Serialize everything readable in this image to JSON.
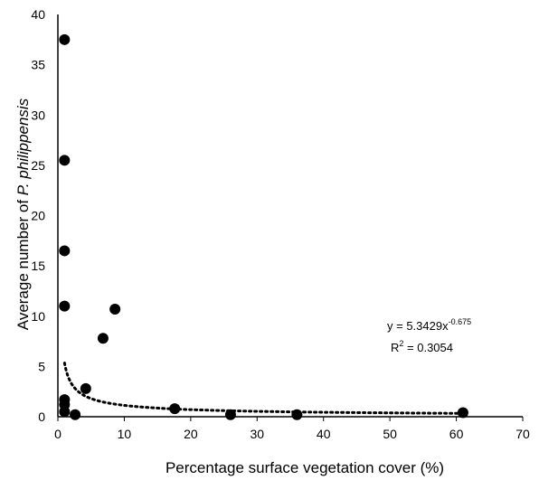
{
  "chart_data": {
    "type": "scatter",
    "title": "",
    "xlabel": "Percentage surface vegetation cover (%)",
    "ylabel_prefix": "Average number of ",
    "ylabel_species": "P. philippensis",
    "xlim": [
      0,
      70
    ],
    "ylim": [
      0,
      40
    ],
    "x_ticks": [
      0,
      10,
      20,
      30,
      40,
      50,
      60,
      70
    ],
    "y_ticks": [
      0,
      5,
      10,
      15,
      20,
      25,
      30,
      35,
      40
    ],
    "grid": false,
    "legend": "none",
    "points": [
      {
        "x": 1,
        "y": 37.5
      },
      {
        "x": 1,
        "y": 25.5
      },
      {
        "x": 1,
        "y": 16.5
      },
      {
        "x": 1,
        "y": 11
      },
      {
        "x": 1,
        "y": 1.7
      },
      {
        "x": 1,
        "y": 1.2
      },
      {
        "x": 1,
        "y": 0.5
      },
      {
        "x": 2.6,
        "y": 0.2
      },
      {
        "x": 4.2,
        "y": 2.8
      },
      {
        "x": 6.8,
        "y": 7.8
      },
      {
        "x": 8.6,
        "y": 10.7
      },
      {
        "x": 17.6,
        "y": 0.8
      },
      {
        "x": 26,
        "y": 0.2
      },
      {
        "x": 36,
        "y": 0.2
      },
      {
        "x": 61,
        "y": 0.4
      }
    ],
    "trendline": {
      "type": "power",
      "a": 5.3429,
      "b": -0.675,
      "x_from": 1,
      "x_to": 61,
      "style": "dotted"
    },
    "annotation": {
      "equation_base": "y = 5.3429x",
      "equation_exp": "-0.675",
      "r2_label": "R",
      "r2_exp": "2",
      "r2_value": " = 0.3054"
    },
    "colors": {
      "points": "#000000",
      "axes": "#000000",
      "trendline": "#000000"
    }
  }
}
